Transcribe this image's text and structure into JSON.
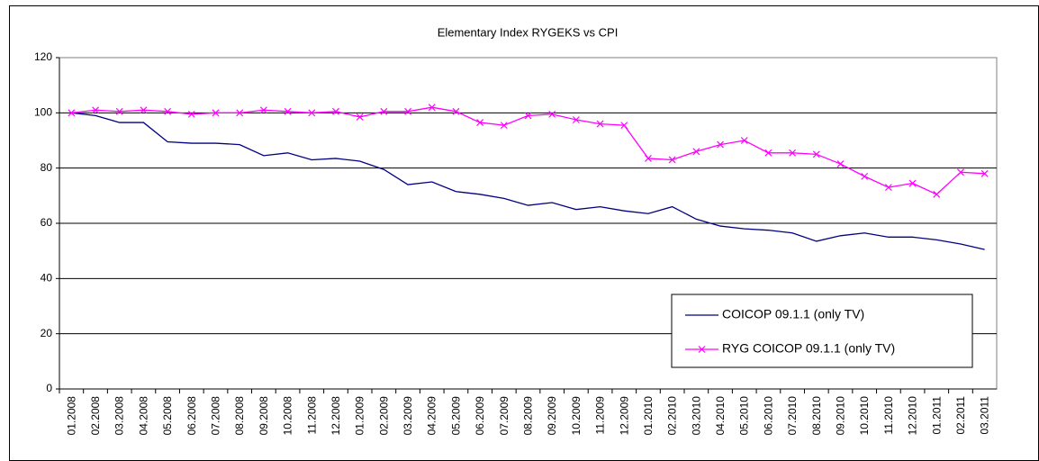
{
  "chart_data": {
    "type": "line",
    "title": "Elementary Index RYGEKS vs CPI",
    "categories": [
      "01.2008",
      "02.2008",
      "03.2008",
      "04.2008",
      "05.2008",
      "06.2008",
      "07.2008",
      "08.2008",
      "09.2008",
      "10.2008",
      "11.2008",
      "12.2008",
      "01.2009",
      "02.2009",
      "03.2009",
      "04.2009",
      "05.2009",
      "06.2009",
      "07.2009",
      "08.2009",
      "09.2009",
      "10.2009",
      "11.2009",
      "12.2009",
      "01.2010",
      "02.2010",
      "03.2010",
      "04.2010",
      "05.2010",
      "06.2010",
      "07.2010",
      "08.2010",
      "09.2010",
      "10.2010",
      "11.2010",
      "12.2010",
      "01.2011",
      "02.2011",
      "03.2011"
    ],
    "series": [
      {
        "name": "COICOP 09.1.1 (only TV)",
        "color": "#000080",
        "marker": "none",
        "values": [
          100,
          99,
          96.5,
          96.5,
          89.5,
          89,
          89,
          88.5,
          84.5,
          85.5,
          83,
          83.5,
          82.5,
          79.5,
          74,
          75,
          71.5,
          70.5,
          69,
          66.5,
          67.5,
          65,
          66,
          64.5,
          63.5,
          66,
          61.5,
          59,
          58,
          57.5,
          56.5,
          53.5,
          55.5,
          56.5,
          55,
          55,
          54,
          52.5,
          50.5
        ]
      },
      {
        "name": "RYG COICOP 09.1.1 (only TV)",
        "color": "#ff00ff",
        "marker": "x",
        "values": [
          100,
          101,
          100.5,
          101,
          100.5,
          99.5,
          100,
          100,
          101,
          100.5,
          100,
          100.5,
          98.5,
          100.5,
          100.5,
          102,
          100.5,
          96.5,
          95.5,
          99,
          99.5,
          97.5,
          96,
          95.5,
          83.5,
          83,
          86,
          88.5,
          90,
          85.5,
          85.5,
          85,
          81.5,
          77,
          73,
          74.5,
          70.5,
          78.5,
          78
        ]
      }
    ],
    "ylim": [
      0,
      120
    ],
    "yticks": [
      0,
      20,
      40,
      60,
      80,
      100,
      120
    ],
    "grid": true,
    "legend": "lower right"
  }
}
